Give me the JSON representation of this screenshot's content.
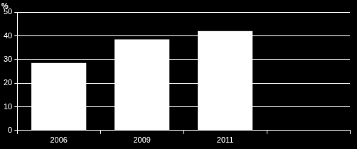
{
  "chart_data": {
    "type": "bar",
    "y_label": "%",
    "categories": [
      "2006",
      "2009",
      "2011",
      null
    ],
    "values": [
      28.5,
      38.5,
      42,
      null
    ],
    "color": "#ffffff",
    "ylim": [
      0,
      50
    ],
    "yticks": [
      0,
      10,
      20,
      30,
      40,
      50
    ],
    "grid": true
  }
}
